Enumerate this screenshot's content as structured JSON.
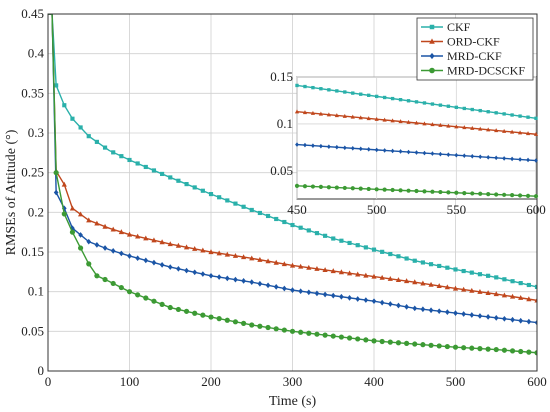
{
  "chart_data": {
    "type": "line",
    "xlabel": "Time (s)",
    "ylabel": "RMSEs of Attitude (°)",
    "xlim": [
      0,
      600
    ],
    "ylim": [
      0,
      0.45
    ],
    "xticks": [
      0,
      100,
      200,
      300,
      400,
      500,
      600
    ],
    "yticks": [
      0,
      0.05,
      0.1,
      0.15,
      0.2,
      0.25,
      0.3,
      0.35,
      0.4,
      0.45
    ],
    "grid": true,
    "legend_position": "top-right",
    "series": [
      {
        "name": "CKF",
        "color": "#2ab0aa",
        "marker": "square",
        "x": [
          0,
          5,
          10,
          20,
          30,
          50,
          75,
          100,
          150,
          200,
          250,
          300,
          350,
          400,
          450,
          500,
          550,
          600
        ],
        "y": [
          0.45,
          0.45,
          0.36,
          0.335,
          0.318,
          0.296,
          0.278,
          0.266,
          0.244,
          0.223,
          0.203,
          0.184,
          0.167,
          0.153,
          0.139,
          0.128,
          0.118,
          0.106
        ]
      },
      {
        "name": "ORD-CKF",
        "color": "#c0471d",
        "marker": "triangle",
        "x": [
          0,
          5,
          10,
          20,
          30,
          50,
          75,
          100,
          150,
          200,
          250,
          300,
          350,
          400,
          450,
          500,
          550,
          600
        ],
        "y": [
          0.45,
          0.45,
          0.252,
          0.235,
          0.205,
          0.19,
          0.18,
          0.172,
          0.16,
          0.15,
          0.142,
          0.133,
          0.126,
          0.119,
          0.112,
          0.104,
          0.097,
          0.089
        ]
      },
      {
        "name": "MRD-CKF",
        "color": "#1b55a6",
        "marker": "diamond",
        "x": [
          0,
          5,
          10,
          20,
          30,
          50,
          75,
          100,
          150,
          200,
          250,
          300,
          350,
          400,
          450,
          500,
          550,
          600
        ],
        "y": [
          0.45,
          0.45,
          0.225,
          0.205,
          0.18,
          0.163,
          0.153,
          0.145,
          0.131,
          0.12,
          0.112,
          0.102,
          0.095,
          0.088,
          0.079,
          0.073,
          0.067,
          0.061
        ]
      },
      {
        "name": "MRD-DCSCKF",
        "color": "#3c9a34",
        "marker": "circle",
        "x": [
          0,
          5,
          10,
          20,
          30,
          40,
          50,
          60,
          75,
          100,
          150,
          200,
          250,
          300,
          350,
          400,
          450,
          500,
          550,
          600
        ],
        "y": [
          0.45,
          0.45,
          0.25,
          0.198,
          0.175,
          0.155,
          0.135,
          0.12,
          0.113,
          0.1,
          0.08,
          0.068,
          0.058,
          0.05,
          0.044,
          0.038,
          0.034,
          0.03,
          0.027,
          0.023
        ]
      }
    ],
    "inset": {
      "xlim": [
        450,
        600
      ],
      "ylim": [
        0.02,
        0.15
      ],
      "xticks": [
        450,
        500,
        550,
        600
      ],
      "yticks": [
        0.05,
        0.1,
        0.15
      ],
      "series": [
        {
          "name": "CKF",
          "x": [
            450,
            600
          ],
          "y": [
            0.141,
            0.106
          ]
        },
        {
          "name": "ORD-CKF",
          "x": [
            450,
            600
          ],
          "y": [
            0.113,
            0.089
          ]
        },
        {
          "name": "MRD-CKF",
          "x": [
            450,
            600
          ],
          "y": [
            0.078,
            0.061
          ]
        },
        {
          "name": "MRD-DCSCKF",
          "x": [
            450,
            600
          ],
          "y": [
            0.034,
            0.023
          ]
        }
      ]
    }
  }
}
